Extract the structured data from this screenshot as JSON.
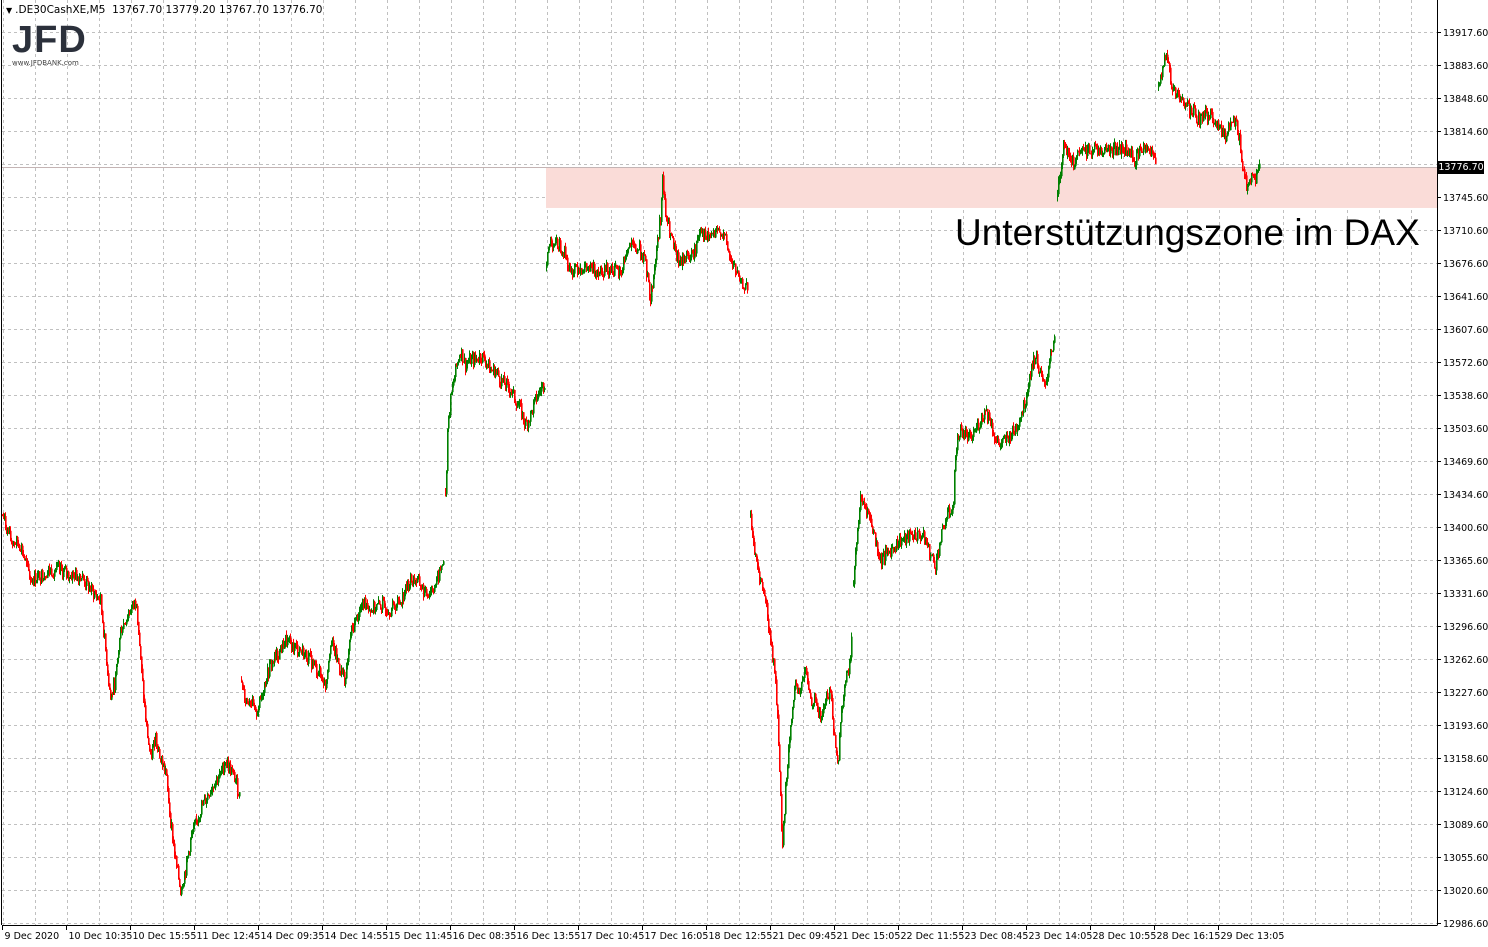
{
  "header": {
    "symbol": ".DE30CashXE,M5",
    "ohlc": "13767.70 13779.20 13767.70 13776.70"
  },
  "logo": {
    "brand": "JFD",
    "url_text": "www.JFDBANK.com"
  },
  "annotation": "Unterstützungszone im DAX",
  "current_price": "13776.70",
  "colors": {
    "up": "#008000",
    "down": "#ff0000",
    "zone": "#fadcd8",
    "grid": "#c0c0c0",
    "price_tag_bg": "#000000"
  },
  "chart_data": {
    "type": "candlestick",
    "timeframe": "M5",
    "grid": true,
    "ylim": [
      12984.5,
      13951.0
    ],
    "xlim": [
      0,
      1435
    ],
    "y_ticks": [
      "13917.60",
      "13883.60",
      "13848.60",
      "13814.60",
      "13745.60",
      "13710.60",
      "13676.60",
      "13641.60",
      "13607.60",
      "13572.60",
      "13538.60",
      "13503.60",
      "13469.60",
      "13434.60",
      "13400.60",
      "13365.60",
      "13331.60",
      "13296.60",
      "13262.60",
      "13227.60",
      "13193.60",
      "13158.60",
      "13124.60",
      "13089.60",
      "13055.60",
      "13020.60",
      "12986.60"
    ],
    "x_ticks": [
      {
        "bar": 0,
        "label": "9 Dec 2020"
      },
      {
        "bar": 64,
        "label": "10 Dec 10:35"
      },
      {
        "bar": 128,
        "label": "10 Dec 15:55"
      },
      {
        "bar": 192,
        "label": "11 Dec 12:45"
      },
      {
        "bar": 256,
        "label": "14 Dec 09:35"
      },
      {
        "bar": 320,
        "label": "14 Dec 14:55"
      },
      {
        "bar": 384,
        "label": "15 Dec 11:45"
      },
      {
        "bar": 448,
        "label": "16 Dec 08:35"
      },
      {
        "bar": 512,
        "label": "16 Dec 13:55"
      },
      {
        "bar": 576,
        "label": "17 Dec 10:45"
      },
      {
        "bar": 640,
        "label": "17 Dec 16:05"
      },
      {
        "bar": 704,
        "label": "18 Dec 12:55"
      },
      {
        "bar": 768,
        "label": "21 Dec 09:45"
      },
      {
        "bar": 832,
        "label": "21 Dec 15:05"
      },
      {
        "bar": 896,
        "label": "22 Dec 11:55"
      },
      {
        "bar": 960,
        "label": "23 Dec 08:45"
      },
      {
        "bar": 1024,
        "label": "23 Dec 14:05"
      },
      {
        "bar": 1088,
        "label": "28 Dec 10:55"
      },
      {
        "bar": 1152,
        "label": "28 Dec 16:15"
      },
      {
        "bar": 1216,
        "label": "29 Dec 13:05"
      }
    ],
    "support_zone": {
      "from_bar": 544,
      "low": 13733.7,
      "high": 13775.5
    },
    "close_path_segments": [
      [
        [
          0,
          13413
        ],
        [
          8,
          13387
        ],
        [
          18,
          13382
        ],
        [
          28,
          13345
        ],
        [
          38,
          13350
        ],
        [
          48,
          13355
        ],
        [
          58,
          13355
        ],
        [
          68,
          13350
        ],
        [
          78,
          13350
        ],
        [
          88,
          13335
        ],
        [
          98,
          13324
        ],
        [
          103,
          13272
        ],
        [
          108,
          13220
        ],
        [
          113,
          13241
        ],
        [
          118,
          13293
        ],
        [
          128,
          13314
        ],
        [
          134,
          13324
        ],
        [
          138,
          13261
        ],
        [
          143,
          13199
        ],
        [
          148,
          13157
        ],
        [
          153,
          13183
        ],
        [
          158,
          13157
        ],
        [
          163,
          13146
        ],
        [
          168,
          13094
        ],
        [
          173,
          13052
        ],
        [
          178,
          13021
        ],
        [
          183,
          13042
        ],
        [
          188,
          13073
        ],
        [
          193,
          13089
        ],
        [
          198,
          13105
        ],
        [
          208,
          13126
        ],
        [
          213,
          13136
        ],
        [
          218,
          13141
        ],
        [
          223,
          13157
        ],
        [
          228,
          13146
        ],
        [
          233,
          13136
        ],
        [
          238,
          13115
        ]
      ],
      [
        [
          239,
          13241
        ],
        [
          243,
          13220
        ],
        [
          248,
          13220
        ],
        [
          253,
          13204
        ],
        [
          258,
          13220
        ],
        [
          263,
          13241
        ],
        [
          268,
          13256
        ],
        [
          278,
          13272
        ],
        [
          283,
          13282
        ],
        [
          288,
          13277
        ],
        [
          298,
          13272
        ],
        [
          308,
          13261
        ],
        [
          318,
          13246
        ],
        [
          323,
          13235
        ],
        [
          328,
          13282
        ],
        [
          333,
          13267
        ],
        [
          338,
          13251
        ],
        [
          343,
          13241
        ],
        [
          348,
          13288
        ],
        [
          353,
          13303
        ],
        [
          358,
          13314
        ],
        [
          363,
          13324
        ],
        [
          368,
          13314
        ],
        [
          378,
          13319
        ],
        [
          388,
          13314
        ],
        [
          398,
          13324
        ],
        [
          408,
          13345
        ],
        [
          413,
          13345
        ],
        [
          418,
          13340
        ],
        [
          423,
          13329
        ],
        [
          428,
          13335
        ],
        [
          433,
          13340
        ],
        [
          438,
          13355
        ],
        [
          442,
          13371
        ]
      ],
      [
        [
          443,
          13429
        ],
        [
          445,
          13502
        ],
        [
          448,
          13533
        ],
        [
          453,
          13564
        ],
        [
          458,
          13585
        ],
        [
          463,
          13570
        ],
        [
          468,
          13575
        ],
        [
          473,
          13575
        ],
        [
          478,
          13580
        ],
        [
          483,
          13575
        ],
        [
          488,
          13564
        ],
        [
          493,
          13564
        ],
        [
          498,
          13554
        ],
        [
          503,
          13549
        ],
        [
          508,
          13544
        ],
        [
          513,
          13533
        ],
        [
          518,
          13523
        ],
        [
          523,
          13507
        ],
        [
          528,
          13517
        ],
        [
          533,
          13533
        ],
        [
          538,
          13544
        ],
        [
          543,
          13554
        ]
      ],
      [
        [
          544,
          13679
        ],
        [
          548,
          13700
        ],
        [
          553,
          13695
        ],
        [
          558,
          13695
        ],
        [
          563,
          13685
        ],
        [
          568,
          13664
        ],
        [
          573,
          13674
        ],
        [
          578,
          13671
        ],
        [
          588,
          13669
        ],
        [
          598,
          13669
        ],
        [
          608,
          13671
        ],
        [
          618,
          13664
        ],
        [
          623,
          13685
        ],
        [
          628,
          13695
        ],
        [
          633,
          13690
        ],
        [
          638,
          13690
        ],
        [
          643,
          13674
        ],
        [
          648,
          13638
        ],
        [
          651,
          13664
        ],
        [
          654,
          13690
        ],
        [
          658,
          13726
        ],
        [
          660,
          13763
        ],
        [
          663,
          13726
        ],
        [
          668,
          13705
        ],
        [
          673,
          13685
        ],
        [
          678,
          13674
        ],
        [
          683,
          13685
        ],
        [
          688,
          13681
        ],
        [
          693,
          13690
        ],
        [
          698,
          13716
        ],
        [
          703,
          13700
        ],
        [
          708,
          13705
        ],
        [
          713,
          13705
        ],
        [
          718,
          13711
        ],
        [
          723,
          13700
        ],
        [
          728,
          13679
        ],
        [
          733,
          13669
        ],
        [
          738,
          13653
        ],
        [
          743,
          13653
        ],
        [
          746,
          13643
        ]
      ],
      [
        [
          748,
          13408
        ],
        [
          753,
          13366
        ],
        [
          758,
          13345
        ],
        [
          763,
          13324
        ],
        [
          768,
          13282
        ],
        [
          773,
          13241
        ],
        [
          776,
          13178
        ],
        [
          778,
          13115
        ],
        [
          780,
          13063
        ],
        [
          783,
          13126
        ],
        [
          788,
          13199
        ],
        [
          793,
          13230
        ],
        [
          798,
          13230
        ],
        [
          803,
          13251
        ],
        [
          808,
          13220
        ],
        [
          813,
          13220
        ],
        [
          818,
          13199
        ],
        [
          823,
          13220
        ],
        [
          828,
          13230
        ],
        [
          833,
          13167
        ],
        [
          836,
          13157
        ],
        [
          838,
          13199
        ],
        [
          843,
          13241
        ],
        [
          848,
          13261
        ],
        [
          850,
          13303
        ]
      ],
      [
        [
          851,
          13345
        ],
        [
          854,
          13387
        ],
        [
          858,
          13429
        ],
        [
          863,
          13423
        ],
        [
          868,
          13408
        ],
        [
          873,
          13387
        ],
        [
          878,
          13366
        ],
        [
          883,
          13371
        ],
        [
          888,
          13376
        ],
        [
          893,
          13382
        ],
        [
          898,
          13387
        ],
        [
          903,
          13387
        ],
        [
          908,
          13392
        ],
        [
          913,
          13392
        ],
        [
          918,
          13392
        ],
        [
          923,
          13387
        ],
        [
          928,
          13371
        ],
        [
          933,
          13361
        ],
        [
          938,
          13387
        ],
        [
          943,
          13408
        ],
        [
          948,
          13418
        ],
        [
          951,
          13423
        ],
        [
          953,
          13481
        ],
        [
          958,
          13502
        ],
        [
          963,
          13497
        ],
        [
          968,
          13491
        ],
        [
          973,
          13502
        ],
        [
          978,
          13512
        ],
        [
          983,
          13523
        ],
        [
          988,
          13512
        ],
        [
          993,
          13491
        ],
        [
          998,
          13486
        ],
        [
          1003,
          13491
        ],
        [
          1008,
          13497
        ],
        [
          1013,
          13502
        ],
        [
          1018,
          13517
        ],
        [
          1023,
          13533
        ],
        [
          1028,
          13564
        ],
        [
          1033,
          13580
        ],
        [
          1038,
          13559
        ],
        [
          1043,
          13544
        ],
        [
          1048,
          13585
        ],
        [
          1053,
          13596
        ]
      ],
      [
        [
          1055,
          13747
        ],
        [
          1058,
          13773
        ],
        [
          1061,
          13805
        ],
        [
          1066,
          13789
        ],
        [
          1071,
          13779
        ],
        [
          1076,
          13789
        ],
        [
          1083,
          13794
        ],
        [
          1093,
          13796
        ],
        [
          1103,
          13794
        ],
        [
          1113,
          13796
        ],
        [
          1123,
          13794
        ],
        [
          1133,
          13784
        ],
        [
          1138,
          13794
        ],
        [
          1143,
          13800
        ],
        [
          1148,
          13794
        ],
        [
          1154,
          13784
        ]
      ],
      [
        [
          1156,
          13857
        ],
        [
          1160,
          13878
        ],
        [
          1164,
          13894
        ],
        [
          1168,
          13867
        ],
        [
          1173,
          13852
        ],
        [
          1178,
          13847
        ],
        [
          1183,
          13841
        ],
        [
          1188,
          13836
        ],
        [
          1193,
          13831
        ],
        [
          1198,
          13826
        ],
        [
          1203,
          13831
        ],
        [
          1208,
          13831
        ],
        [
          1213,
          13820
        ],
        [
          1218,
          13820
        ],
        [
          1223,
          13805
        ],
        [
          1228,
          13826
        ],
        [
          1233,
          13826
        ],
        [
          1238,
          13800
        ],
        [
          1241,
          13768
        ],
        [
          1244,
          13758
        ],
        [
          1248,
          13763
        ],
        [
          1253,
          13763
        ],
        [
          1258,
          13777
        ]
      ]
    ]
  }
}
